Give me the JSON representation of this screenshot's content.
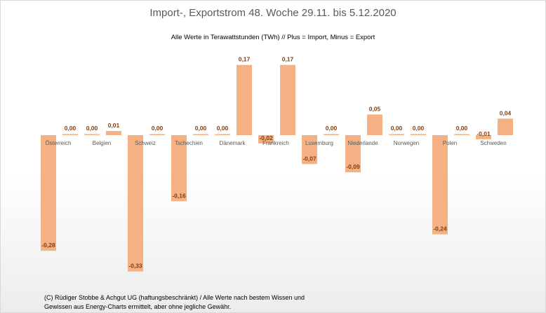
{
  "chart_data": {
    "type": "bar",
    "title": "Import-, Exportstrom 48. Woche 29.11. bis 5.12.2020",
    "subtitle": "Alle Werte in Terawattstunden (TWh) // Plus = Import, Minus = Export",
    "categories": [
      "Österreich",
      "Belgien",
      "Schweiz",
      "Tschechien",
      "Dänemark",
      "Frankreich",
      "Luxemburg",
      "Niederlande",
      "Norwegen",
      "Polen",
      "Schweden"
    ],
    "series": [
      {
        "name": "Export",
        "values": [
          -0.28,
          0.0,
          -0.33,
          -0.16,
          0.0,
          -0.02,
          -0.07,
          -0.09,
          0.0,
          -0.24,
          -0.01
        ]
      },
      {
        "name": "Import",
        "values": [
          0.0,
          0.01,
          0.0,
          0.0,
          0.17,
          0.17,
          0.0,
          0.05,
          0.0,
          0.0,
          0.04
        ]
      }
    ],
    "data_labels": [
      [
        "-0,28",
        "0,00"
      ],
      [
        "0,00",
        "0,01"
      ],
      [
        "-0,33",
        "0,00"
      ],
      [
        "-0,16",
        "0,00"
      ],
      [
        "0,00",
        "0,17"
      ],
      [
        "-0,02",
        "0,17"
      ],
      [
        "-0,07",
        "0,00"
      ],
      [
        "-0,09",
        "0,05"
      ],
      [
        "0,00",
        "0,00"
      ],
      [
        "-0,24",
        "0,00"
      ],
      [
        "-0,01",
        "0,04"
      ]
    ],
    "bar_color": "#f4b183",
    "label_color": "#843c0c",
    "ylim": [
      -0.35,
      0.18
    ],
    "grid": false,
    "legend": "none"
  },
  "footer": {
    "line1": "(C) Rüdiger Stobbe & Achgut UG (haftungsbeschränkt) / Alle Werte nach bestem Wissen und",
    "line2": "Gewissen aus Energy-Charts ermittelt, aber ohne jegliche Gewähr."
  }
}
